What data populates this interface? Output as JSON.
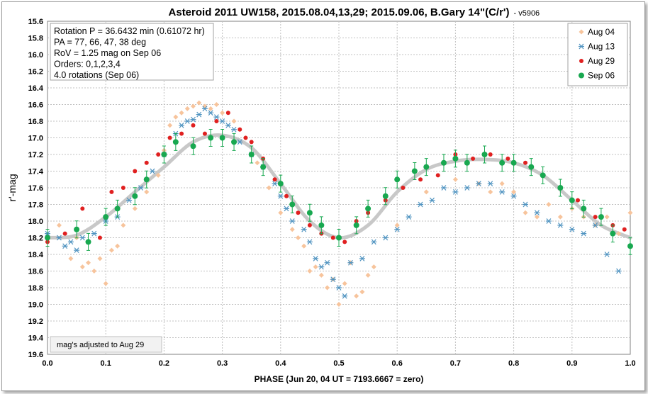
{
  "chart_data": {
    "type": "scatter",
    "title": "Asteroid 2011 UW158, 2015.08.04,13,29; 2015.09.06, B.Gary 14\"(C/r')",
    "version": "- v5906",
    "xlabel": "PHASE (Jun 20, 04 UT = 7193.6667 = zero)",
    "ylabel": "r'-mag",
    "xlim": [
      0.0,
      1.0
    ],
    "ylim": [
      19.6,
      15.6
    ],
    "y_inverted": true,
    "x_ticks": [
      "0.0",
      "0.1",
      "0.2",
      "0.3",
      "0.4",
      "0.5",
      "0.6",
      "0.7",
      "0.8",
      "0.9",
      "1.0"
    ],
    "y_ticks": [
      "15.6",
      "15.8",
      "16.0",
      "16.2",
      "16.4",
      "16.6",
      "16.8",
      "17.0",
      "17.2",
      "17.4",
      "17.6",
      "17.8",
      "18.0",
      "18.2",
      "18.4",
      "18.6",
      "18.8",
      "19.0",
      "19.2",
      "19.4",
      "19.6"
    ],
    "grid": true,
    "legend_position": "top-right",
    "info_box": [
      "Rotation P = 36.6432 min (0.61072 hr)",
      "PA =  77, 66, 47, 38 deg",
      "RoV = 1.25 mag on Sep 06",
      "Orders: 0,1,2,3,4",
      " 4.0 rotations (Sep 06)"
    ],
    "footnote": "mag's adjusted to Aug 29",
    "model_curve": {
      "color": "#c8c8c8",
      "x": [
        0.0,
        0.05,
        0.1,
        0.15,
        0.2,
        0.25,
        0.3,
        0.35,
        0.4,
        0.45,
        0.5,
        0.55,
        0.6,
        0.65,
        0.7,
        0.75,
        0.8,
        0.85,
        0.9,
        0.95,
        1.0
      ],
      "y": [
        18.2,
        18.17,
        17.95,
        17.65,
        17.35,
        17.05,
        16.97,
        17.12,
        17.55,
        18.0,
        18.2,
        18.05,
        17.65,
        17.38,
        17.28,
        17.26,
        17.3,
        17.45,
        17.75,
        18.05,
        18.2
      ]
    },
    "series": [
      {
        "name": "Aug 04",
        "marker": "diamond",
        "color": "#f7c49c",
        "x": [
          0.0,
          0.02,
          0.04,
          0.05,
          0.06,
          0.07,
          0.08,
          0.09,
          0.1,
          0.11,
          0.12,
          0.13,
          0.15,
          0.17,
          0.19,
          0.2,
          0.21,
          0.22,
          0.23,
          0.24,
          0.25,
          0.26,
          0.27,
          0.28,
          0.29,
          0.3,
          0.32,
          0.34,
          0.36,
          0.38,
          0.4,
          0.42,
          0.43,
          0.44,
          0.45,
          0.46,
          0.47,
          0.48,
          0.49,
          0.5,
          0.51,
          0.52,
          0.53,
          0.54,
          0.55,
          0.56,
          0.6,
          0.65,
          0.7,
          0.74,
          0.76,
          0.78,
          0.8,
          0.82,
          0.84,
          0.86,
          0.88,
          0.9,
          0.92,
          0.94,
          0.96,
          0.98,
          1.0
        ],
        "y": [
          18.25,
          18.05,
          18.45,
          18.2,
          18.55,
          18.5,
          18.6,
          18.45,
          18.75,
          18.35,
          18.3,
          18.05,
          17.85,
          17.65,
          17.45,
          17.15,
          16.85,
          16.75,
          16.7,
          16.65,
          16.62,
          16.58,
          16.62,
          16.65,
          16.6,
          16.7,
          16.8,
          17.0,
          17.3,
          17.6,
          17.9,
          18.1,
          18.2,
          18.3,
          18.6,
          18.55,
          18.65,
          18.8,
          18.7,
          19.0,
          18.75,
          18.5,
          18.9,
          18.85,
          18.65,
          18.55,
          18.05,
          17.65,
          17.5,
          17.55,
          17.65,
          17.55,
          17.65,
          17.9,
          17.95,
          17.8,
          17.95,
          17.85,
          17.95,
          18.05,
          17.95,
          18.15,
          17.9
        ]
      },
      {
        "name": "Aug 13",
        "marker": "asterisk",
        "color": "#4f93c0",
        "x": [
          0.0,
          0.02,
          0.03,
          0.04,
          0.05,
          0.06,
          0.08,
          0.1,
          0.12,
          0.14,
          0.16,
          0.18,
          0.2,
          0.22,
          0.23,
          0.24,
          0.25,
          0.26,
          0.27,
          0.28,
          0.29,
          0.3,
          0.31,
          0.32,
          0.33,
          0.35,
          0.37,
          0.39,
          0.4,
          0.41,
          0.42,
          0.44,
          0.45,
          0.46,
          0.47,
          0.48,
          0.49,
          0.5,
          0.51,
          0.52,
          0.54,
          0.56,
          0.58,
          0.6,
          0.62,
          0.64,
          0.66,
          0.68,
          0.7,
          0.72,
          0.74,
          0.76,
          0.78,
          0.8,
          0.82,
          0.84,
          0.86,
          0.88,
          0.9,
          0.92,
          0.94,
          0.96,
          0.98
        ],
        "y": [
          18.15,
          18.2,
          18.3,
          18.25,
          18.35,
          18.2,
          18.15,
          18.0,
          17.95,
          17.75,
          17.6,
          17.4,
          17.2,
          16.95,
          16.85,
          16.8,
          16.78,
          16.72,
          16.65,
          16.7,
          16.75,
          16.8,
          16.85,
          16.9,
          17.05,
          17.2,
          17.35,
          17.55,
          17.7,
          17.85,
          18.0,
          18.1,
          18.25,
          18.45,
          18.55,
          18.5,
          18.7,
          18.8,
          18.9,
          18.5,
          18.45,
          18.25,
          18.2,
          18.1,
          17.95,
          17.8,
          17.75,
          17.6,
          17.65,
          17.6,
          17.55,
          17.55,
          17.65,
          17.7,
          17.8,
          17.9,
          18.0,
          18.05,
          18.1,
          18.15,
          18.05,
          18.4,
          18.6
        ]
      },
      {
        "name": "Aug 29",
        "marker": "circle",
        "color": "#e02020",
        "x": [
          0.0,
          0.03,
          0.06,
          0.09,
          0.11,
          0.13,
          0.15,
          0.17,
          0.19,
          0.21,
          0.23,
          0.25,
          0.27,
          0.29,
          0.31,
          0.33,
          0.34,
          0.35,
          0.37,
          0.39,
          0.41,
          0.43,
          0.45,
          0.47,
          0.49,
          0.51,
          0.53,
          0.55,
          0.58,
          0.61,
          0.64,
          0.67,
          0.7,
          0.73,
          0.76,
          0.79,
          0.82,
          0.85,
          0.88,
          0.91,
          0.94,
          0.97,
          0.99
        ],
        "y": [
          18.25,
          18.15,
          17.85,
          18.2,
          17.65,
          17.6,
          17.4,
          17.3,
          17.2,
          17.0,
          16.95,
          16.85,
          16.95,
          16.8,
          16.7,
          16.9,
          17.0,
          17.05,
          17.25,
          17.5,
          17.7,
          17.9,
          18.05,
          18.15,
          18.2,
          18.25,
          18.0,
          17.9,
          17.75,
          17.6,
          17.5,
          17.45,
          17.2,
          17.25,
          17.2,
          17.25,
          17.3,
          17.45,
          17.6,
          17.75,
          17.95,
          18.05,
          18.1
        ]
      },
      {
        "name": "Sep 06",
        "marker": "circle",
        "color": "#18a850",
        "x": [
          0.0,
          0.05,
          0.07,
          0.1,
          0.12,
          0.15,
          0.17,
          0.2,
          0.22,
          0.25,
          0.28,
          0.3,
          0.32,
          0.35,
          0.37,
          0.4,
          0.42,
          0.45,
          0.47,
          0.5,
          0.53,
          0.55,
          0.58,
          0.6,
          0.63,
          0.65,
          0.68,
          0.7,
          0.72,
          0.75,
          0.78,
          0.8,
          0.83,
          0.85,
          0.88,
          0.9,
          0.92,
          0.95,
          0.97,
          1.0
        ],
        "y": [
          18.2,
          18.1,
          18.25,
          17.95,
          17.85,
          17.7,
          17.5,
          17.2,
          17.05,
          17.1,
          17.0,
          17.0,
          17.05,
          17.2,
          17.35,
          17.55,
          17.8,
          17.9,
          18.05,
          18.2,
          18.05,
          17.85,
          17.7,
          17.5,
          17.4,
          17.35,
          17.3,
          17.25,
          17.3,
          17.2,
          17.3,
          17.3,
          17.35,
          17.45,
          17.6,
          17.75,
          17.85,
          17.95,
          18.15,
          18.3
        ]
      }
    ]
  }
}
